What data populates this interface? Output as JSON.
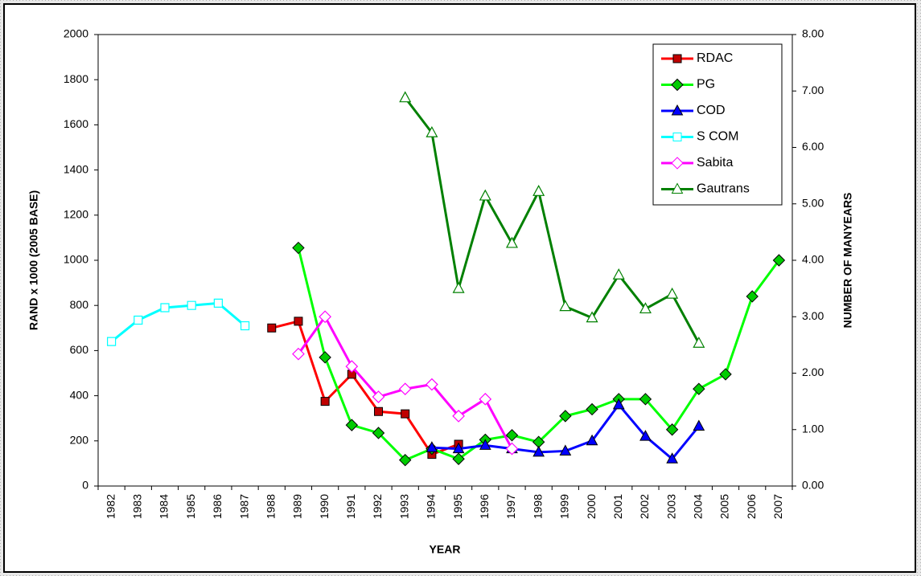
{
  "chart_data": {
    "type": "line",
    "categories": [
      "1982",
      "1983",
      "1984",
      "1985",
      "1986",
      "1987",
      "1988",
      "1989",
      "1990",
      "1991",
      "1992",
      "1993",
      "1994",
      "1995",
      "1996",
      "1997",
      "1998",
      "1999",
      "2000",
      "2001",
      "2002",
      "2003",
      "2004",
      "2005",
      "2006",
      "2007"
    ],
    "x_label": "YEAR",
    "y_label": "RAND x 1000 (2005 BASE)",
    "y2_label": "NUMBER OF MANYEARS",
    "ylim": [
      0,
      2000
    ],
    "yticks": [
      0,
      200,
      400,
      600,
      800,
      1000,
      1200,
      1400,
      1600,
      1800,
      2000
    ],
    "y2lim": [
      0,
      8
    ],
    "y2ticks": [
      {
        "value": 0,
        "label": "0.00"
      },
      {
        "value": 1,
        "label": "1.00"
      },
      {
        "value": 2,
        "label": "2.00"
      },
      {
        "value": 3,
        "label": "3.00"
      },
      {
        "value": 4,
        "label": "4.00"
      },
      {
        "value": 5,
        "label": "5.00"
      },
      {
        "value": 6,
        "label": "6.00"
      },
      {
        "value": 7,
        "label": "7.00"
      },
      {
        "value": 8,
        "label": "8.00"
      }
    ],
    "legend": "top-right",
    "series": [
      {
        "name": "RDAC",
        "color": "#ff0000",
        "marker": "square",
        "marker_color": "#c00000",
        "filled": true,
        "values": [
          null,
          null,
          null,
          null,
          null,
          null,
          700,
          730,
          375,
          495,
          330,
          320,
          140,
          185,
          null,
          null,
          null,
          null,
          null,
          null,
          null,
          null,
          null,
          null,
          null,
          null
        ]
      },
      {
        "name": "PG",
        "color": "#00ff00",
        "marker": "diamond",
        "marker_color": "#00cc00",
        "filled": true,
        "values": [
          null,
          null,
          null,
          null,
          null,
          null,
          null,
          1055,
          570,
          270,
          235,
          115,
          165,
          120,
          205,
          225,
          195,
          310,
          340,
          385,
          385,
          250,
          430,
          495,
          840,
          1000
        ]
      },
      {
        "name": "COD",
        "color": "#0000ff",
        "marker": "triangle",
        "marker_color": "#0000ff",
        "filled": true,
        "values": [
          null,
          null,
          null,
          null,
          null,
          null,
          null,
          null,
          null,
          null,
          null,
          null,
          170,
          165,
          180,
          165,
          150,
          155,
          200,
          360,
          220,
          120,
          265,
          null,
          null,
          null
        ]
      },
      {
        "name": "S COM",
        "color": "#00ffff",
        "marker": "square",
        "marker_color": "#00ffff",
        "filled": false,
        "values": [
          640,
          735,
          790,
          800,
          810,
          710,
          null,
          null,
          null,
          null,
          null,
          null,
          null,
          null,
          null,
          null,
          null,
          null,
          null,
          null,
          null,
          null,
          null,
          null,
          null,
          null
        ]
      },
      {
        "name": "Sabita",
        "color": "#ff00ff",
        "marker": "diamond",
        "marker_color": "#ff00ff",
        "filled": false,
        "values": [
          null,
          null,
          null,
          null,
          null,
          null,
          null,
          585,
          750,
          530,
          395,
          430,
          450,
          310,
          385,
          165,
          null,
          null,
          null,
          null,
          null,
          null,
          null,
          null,
          null,
          null
        ]
      },
      {
        "name": "Gautrans",
        "color": "#008000",
        "marker": "triangle",
        "marker_color": "#008000",
        "filled": false,
        "axis": "y2",
        "values": [
          null,
          null,
          null,
          null,
          null,
          null,
          null,
          null,
          null,
          null,
          null,
          6.88,
          6.26,
          3.5,
          5.14,
          4.3,
          5.22,
          3.18,
          2.98,
          3.74,
          3.14,
          3.4,
          2.53,
          null,
          null,
          null
        ]
      }
    ]
  }
}
